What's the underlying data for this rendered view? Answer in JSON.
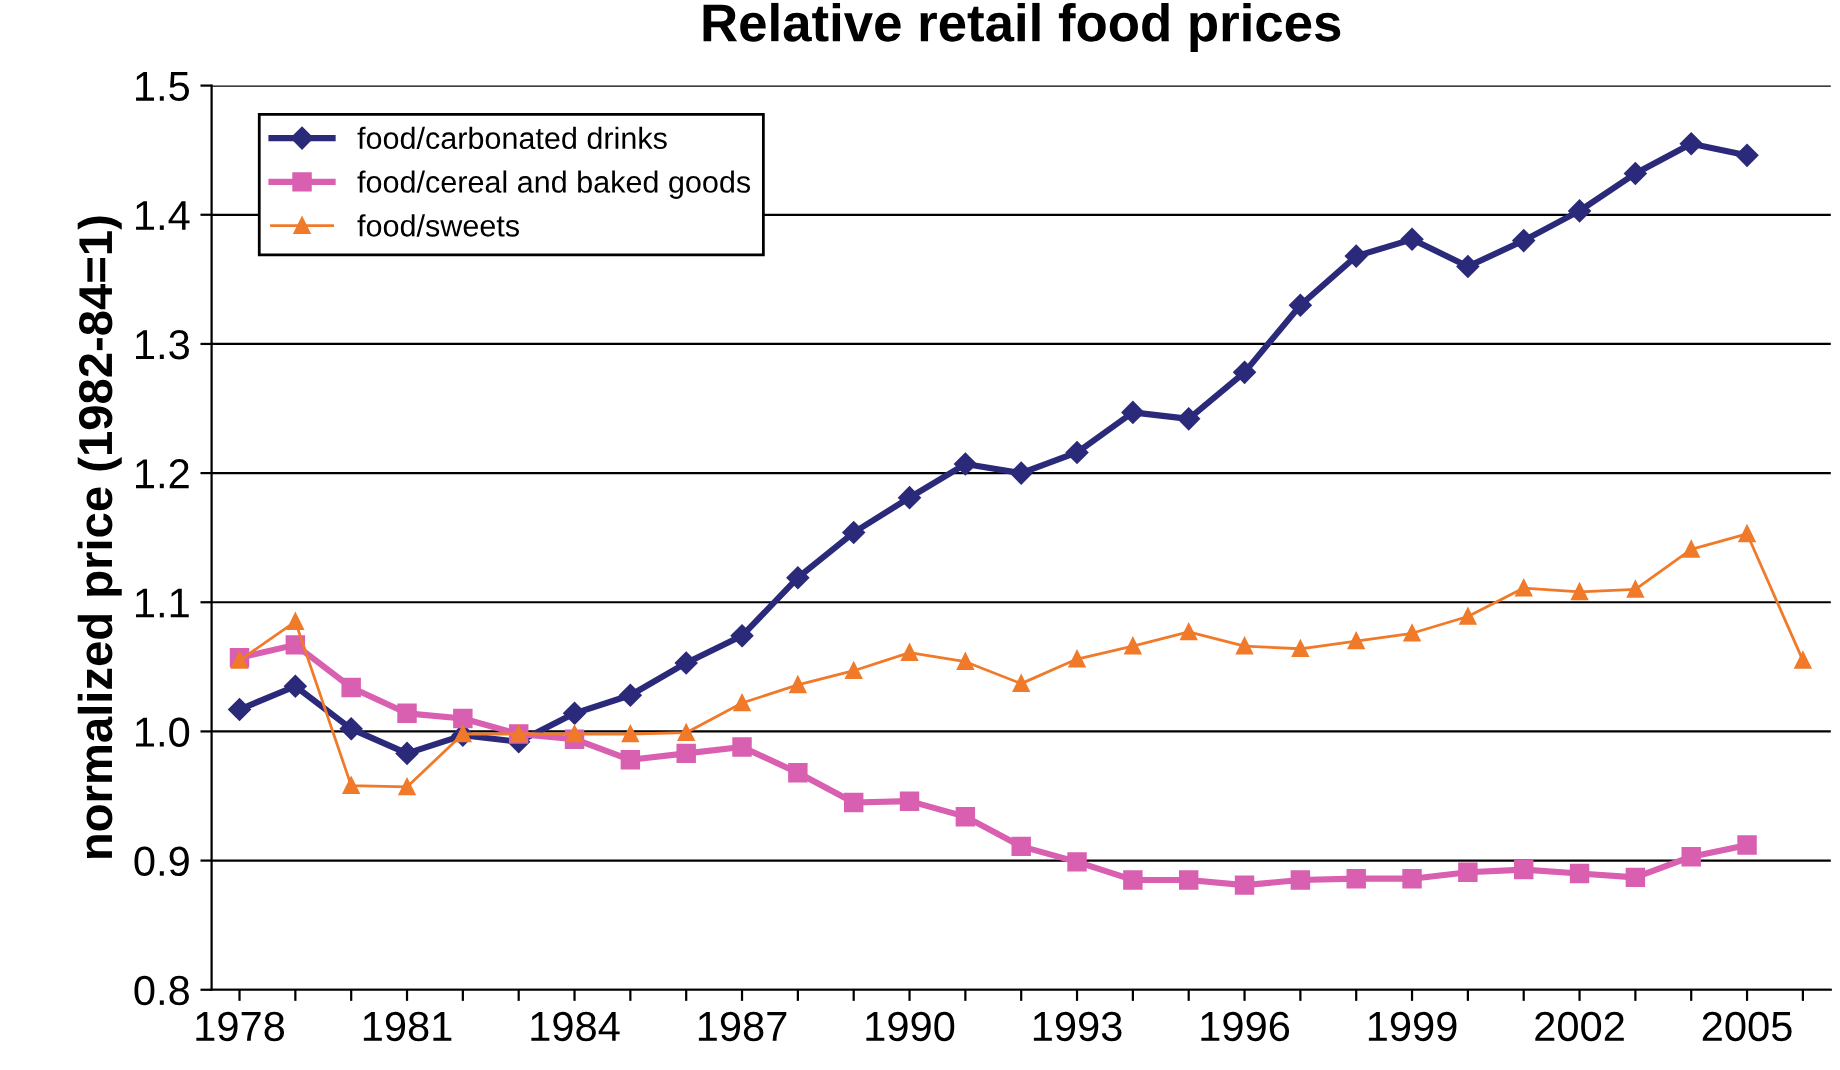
{
  "chart_data": {
    "type": "line",
    "title": "Relative retail food prices",
    "ylabel": "normalized price (1982-84=1)",
    "categories": [
      "1978",
      null,
      null,
      "1981",
      null,
      null,
      "1984",
      null,
      null,
      "1987",
      null,
      null,
      "1990",
      null,
      null,
      "1993",
      null,
      null,
      "1996",
      null,
      null,
      "1999",
      null,
      null,
      "2002",
      null,
      null,
      "2005",
      null
    ],
    "series": [
      {
        "name": "food/carbonated drinks",
        "color": "#2b2a7a",
        "marker": "diamond",
        "values": [
          1.017,
          1.035,
          1.002,
          0.983,
          0.997,
          0.992,
          1.014,
          1.028,
          1.053,
          1.074,
          1.119,
          1.154,
          1.181,
          1.207,
          1.2,
          1.216,
          1.247,
          1.242,
          1.278,
          1.33,
          1.368,
          1.381,
          1.36,
          1.38,
          1.403,
          1.432,
          1.455,
          1.446,
          null
        ]
      },
      {
        "name": "food/cereal and baked goods",
        "color": "#d95fb0",
        "marker": "square",
        "values": [
          1.057,
          1.067,
          1.034,
          1.014,
          1.01,
          0.998,
          0.994,
          0.978,
          0.983,
          0.988,
          0.968,
          0.945,
          0.946,
          0.934,
          0.911,
          0.899,
          0.885,
          0.885,
          0.881,
          0.885,
          0.886,
          0.886,
          0.891,
          0.893,
          0.89,
          0.887,
          0.903,
          0.912,
          null
        ]
      },
      {
        "name": "food/sweets",
        "color": "#f07a2a",
        "marker": "triangle",
        "values": [
          1.055,
          1.085,
          0.958,
          0.957,
          0.998,
          0.998,
          0.998,
          0.998,
          0.999,
          1.022,
          1.036,
          1.047,
          1.061,
          1.054,
          1.037,
          1.056,
          1.066,
          1.077,
          1.066,
          1.064,
          1.07,
          1.076,
          1.089,
          1.111,
          1.108,
          1.11,
          1.141,
          1.153,
          1.055
        ]
      }
    ],
    "ylim": [
      0.8,
      1.5
    ],
    "yticks": [
      0.8,
      0.9,
      {
        "value": 1.0,
        "label": "1.0"
      },
      1.1,
      1.2,
      1.3,
      1.4,
      1.5
    ],
    "grid": "y",
    "legend": "top left",
    "line_style": "solid"
  }
}
